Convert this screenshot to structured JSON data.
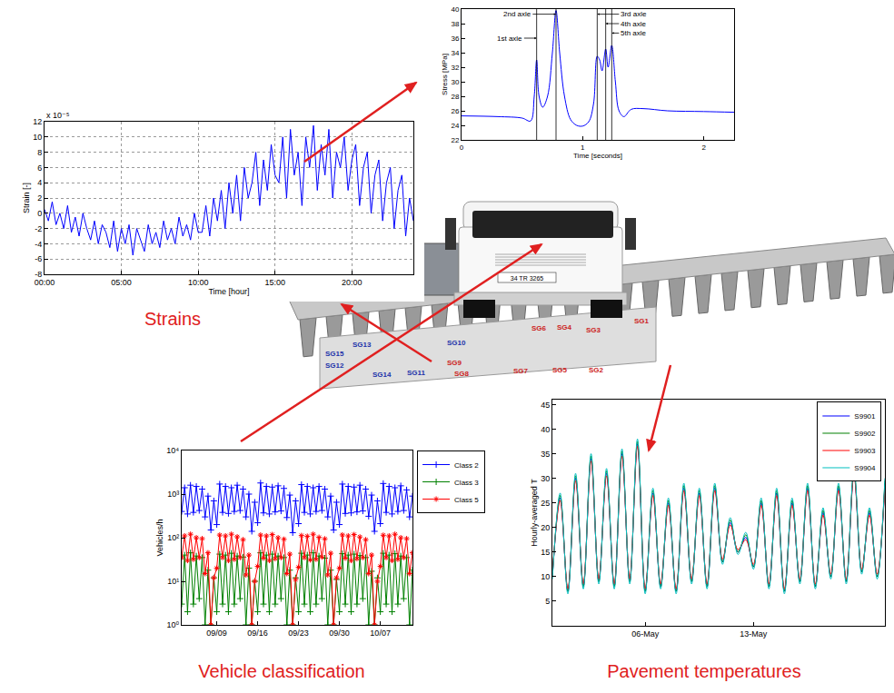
{
  "chart_data": [
    {
      "type": "line",
      "x_label": "Time [hour]",
      "y_label": "Strain [-]",
      "y_multiplier": "x 10⁻⁵",
      "xlim": [
        0,
        24
      ],
      "xticks": [
        {
          "value": 0,
          "label": "00:00"
        },
        {
          "value": 5,
          "label": "05:00"
        },
        {
          "value": 10,
          "label": "10:00"
        },
        {
          "value": 15,
          "label": "15:00"
        },
        {
          "value": 20,
          "label": "20:00"
        }
      ],
      "ylim": [
        -8,
        12
      ],
      "yticks": [
        -8,
        -6,
        -4,
        -2,
        0,
        2,
        4,
        6,
        8,
        10,
        12
      ],
      "grid": true,
      "color": "#0000ff",
      "x": [
        0,
        0.25,
        0.5,
        0.75,
        1,
        1.25,
        1.5,
        1.75,
        2,
        2.25,
        2.5,
        2.75,
        3,
        3.25,
        3.5,
        3.75,
        4,
        4.25,
        4.5,
        4.75,
        5,
        5.25,
        5.5,
        5.75,
        6,
        6.25,
        6.5,
        6.75,
        7,
        7.25,
        7.5,
        7.75,
        8,
        8.25,
        8.5,
        8.75,
        9,
        9.25,
        9.5,
        9.75,
        10,
        10.25,
        10.5,
        10.75,
        11,
        11.25,
        11.5,
        11.75,
        12,
        12.25,
        12.5,
        12.75,
        13,
        13.25,
        13.5,
        13.75,
        14,
        14.25,
        14.5,
        14.75,
        15,
        15.25,
        15.5,
        15.75,
        16,
        16.25,
        16.5,
        16.75,
        17,
        17.25,
        17.5,
        17.75,
        18,
        18.25,
        18.5,
        18.75,
        19,
        19.25,
        19.5,
        19.75,
        20,
        20.25,
        20.5,
        20.75,
        21,
        21.25,
        21.5,
        21.75,
        22,
        22.25,
        22.5,
        22.75,
        23,
        23.25,
        23.5,
        23.75,
        24
      ],
      "values": [
        0.5,
        -1,
        1.5,
        -1.5,
        0,
        -2,
        1,
        -2.5,
        -0.5,
        -3,
        0,
        -2,
        -3.5,
        -1,
        -4,
        -1.5,
        -2.5,
        -4.5,
        -1,
        -5,
        -2,
        -4,
        -1.5,
        -5.5,
        -2,
        -3.5,
        -5,
        -1.5,
        -4,
        -2.5,
        -4.5,
        -1,
        -3.5,
        -2,
        -4,
        -0.5,
        -3,
        -1.5,
        -3.5,
        0,
        -2.5,
        -2.5,
        1,
        -3,
        2,
        -1,
        3,
        -2,
        4,
        0,
        5,
        -1,
        6,
        2,
        4,
        8,
        1,
        7,
        3,
        9,
        5,
        4,
        10,
        2,
        11,
        5,
        8,
        1,
        10,
        6,
        11.5,
        3,
        9,
        5,
        11,
        2,
        8,
        6,
        10,
        3,
        7,
        9,
        1,
        6,
        8,
        0,
        5,
        7,
        -1,
        4,
        6,
        -2,
        3,
        5,
        -3,
        2,
        -1
      ]
    },
    {
      "type": "line",
      "x_label": "Time [seconds]",
      "y_label": "Stress [MPa]",
      "xlim": [
        0,
        2.25
      ],
      "xticks": [
        0,
        1,
        2
      ],
      "ylim": [
        22,
        40
      ],
      "yticks": [
        22,
        24,
        26,
        28,
        30,
        32,
        34,
        36,
        38,
        40
      ],
      "grid": false,
      "color": "#0000ff",
      "x": [
        0,
        0.3,
        0.5,
        0.57,
        0.6,
        0.62,
        0.64,
        0.67,
        0.71,
        0.75,
        0.78,
        0.81,
        0.85,
        0.9,
        0.95,
        1.0,
        1.05,
        1.09,
        1.12,
        1.14,
        1.16,
        1.19,
        1.21,
        1.24,
        1.27,
        1.3,
        1.34,
        1.4,
        1.5,
        1.7,
        2.0,
        2.25
      ],
      "values": [
        25.3,
        25.2,
        25.0,
        24.6,
        28,
        33,
        28,
        26.5,
        28,
        34,
        39.8,
        34,
        28,
        24.8,
        24.0,
        23.9,
        24.5,
        27,
        33.5,
        33,
        31.5,
        34.5,
        32,
        35,
        30,
        26,
        25.2,
        26.2,
        26.3,
        26.0,
        25.9,
        25.8
      ],
      "annotations": [
        {
          "text": "1st axle",
          "x": 0.62
        },
        {
          "text": "2nd axle",
          "x": 0.78
        },
        {
          "text": "3rd axle",
          "x": 1.12
        },
        {
          "text": "4th axle",
          "x": 1.19
        },
        {
          "text": "5th axle",
          "x": 1.24
        }
      ]
    },
    {
      "type": "line",
      "y_label": "Vehicles/h",
      "categories": [
        null,
        null,
        null,
        null,
        null,
        null,
        null,
        null,
        null,
        null,
        null,
        null,
        "09/09",
        null,
        null,
        null,
        null,
        null,
        null,
        null,
        null,
        null,
        null,
        null,
        null,
        null,
        "09/16",
        null,
        null,
        null,
        null,
        null,
        null,
        null,
        null,
        null,
        null,
        null,
        null,
        null,
        "09/23",
        null,
        null,
        null,
        null,
        null,
        null,
        null,
        null,
        null,
        null,
        null,
        null,
        null,
        "09/30",
        null,
        null,
        null,
        null,
        null,
        null,
        null,
        null,
        null,
        null,
        null,
        null,
        null,
        "10/07",
        null,
        null,
        null,
        null,
        null,
        null,
        null,
        null,
        null,
        null,
        null
      ],
      "log": "y",
      "ylim": [
        1,
        10000
      ],
      "yticks": [
        {
          "value": 1,
          "label": "10⁰"
        },
        {
          "value": 10,
          "label": "10¹"
        },
        {
          "value": 100,
          "label": "10²"
        },
        {
          "value": 1000,
          "label": "10³"
        },
        {
          "value": 10000,
          "label": "10⁴"
        }
      ],
      "grid": false,
      "legend": "right",
      "series": [
        {
          "name": "Class 2",
          "color": "#0000ff",
          "marker": "plus",
          "values": [
            400,
            1400,
            350,
            1600,
            380,
            1500,
            420,
            1300,
            300,
            900,
            150,
            700,
            200,
            1700,
            380,
            1500,
            360,
            1400,
            400,
            1600,
            420,
            1300,
            300,
            1000,
            140,
            650,
            220,
            1800,
            370,
            1500,
            350,
            1450,
            390,
            1550,
            410,
            1350,
            290,
            950,
            130,
            700,
            210,
            1650,
            380,
            1500,
            350,
            1400,
            400,
            1500,
            420,
            1300,
            300,
            900,
            150,
            650,
            200,
            1700,
            360,
            1500,
            370,
            1450,
            390,
            1600,
            410,
            1300,
            310,
            950,
            140,
            700,
            210,
            1750,
            380,
            1500,
            350,
            1400,
            400,
            1550,
            420,
            1250,
            300,
            900
          ]
        },
        {
          "name": "Class 3",
          "color": "#008000",
          "marker": "plus",
          "values": [
            3,
            40,
            2,
            45,
            3,
            38,
            4,
            35,
            1,
            18,
            1,
            12,
            2,
            42,
            3,
            40,
            2,
            44,
            3,
            38,
            4,
            36,
            1,
            20,
            1,
            10,
            2,
            45,
            3,
            40,
            2,
            42,
            3,
            38,
            4,
            35,
            1,
            18,
            1,
            12,
            2,
            44,
            3,
            40,
            2,
            45,
            3,
            38,
            4,
            34,
            1,
            18,
            1,
            11,
            2,
            43,
            3,
            40,
            2,
            42,
            3,
            39,
            4,
            35,
            1,
            17,
            1,
            12,
            2,
            44,
            3,
            40,
            2,
            43,
            3,
            38,
            4,
            35,
            1,
            18
          ]
        },
        {
          "name": "Class 5",
          "color": "#ff0000",
          "marker": "star",
          "values": [
            35,
            110,
            30,
            120,
            32,
            100,
            35,
            95,
            15,
            45,
            1,
            12,
            20,
            115,
            35,
            110,
            30,
            120,
            32,
            105,
            35,
            90,
            14,
            40,
            1,
            10,
            22,
            115,
            34,
            110,
            30,
            118,
            33,
            100,
            35,
            92,
            15,
            42,
            1,
            11,
            21,
            112,
            35,
            108,
            31,
            120,
            32,
            102,
            36,
            94,
            14,
            44,
            1,
            12,
            20,
            116,
            34,
            110,
            30,
            118,
            33,
            104,
            35,
            90,
            15,
            40,
            1,
            10,
            22,
            114,
            35,
            110,
            30,
            120,
            32,
            100,
            35,
            95,
            15,
            45
          ]
        }
      ]
    },
    {
      "type": "line",
      "y_label": "Hourly-averaged T",
      "categories": [
        null,
        null,
        null,
        null,
        null,
        null,
        null,
        null,
        null,
        null,
        null,
        null,
        "06-May",
        null,
        null,
        null,
        null,
        null,
        null,
        null,
        null,
        null,
        null,
        null,
        null,
        null,
        "13-May",
        null,
        null,
        null,
        null,
        null,
        null,
        null,
        null,
        null,
        null,
        null,
        null,
        null,
        null,
        null,
        null,
        null
      ],
      "ylim": [
        0,
        46
      ],
      "yticks": [
        5,
        10,
        15,
        20,
        25,
        30,
        35,
        40,
        45
      ],
      "grid": false,
      "legend": "upper right",
      "series": [
        {
          "name": "S9901",
          "color": "#0000ff",
          "values": [
            10,
            26,
            7,
            30,
            8,
            34,
            9,
            31,
            8,
            35,
            9,
            37,
            7,
            27,
            8,
            25,
            7,
            28,
            9,
            27,
            8,
            28,
            13,
            21,
            15,
            18,
            12,
            25,
            8,
            27,
            7,
            25,
            9,
            28,
            8,
            23,
            10,
            28,
            9,
            31,
            11,
            23,
            10,
            29
          ]
        },
        {
          "name": "S9902",
          "color": "#008000",
          "values": [
            10,
            26.5,
            7,
            30.5,
            8,
            34.5,
            9,
            31.5,
            8,
            35.5,
            9,
            37.5,
            7,
            27.5,
            8,
            25.5,
            7,
            28.5,
            9,
            27.5,
            8,
            28.5,
            13,
            21.5,
            15,
            18.5,
            12,
            25.5,
            8,
            27.5,
            7,
            25.5,
            9,
            28.5,
            8,
            23.5,
            10,
            28.5,
            9,
            31.5,
            11,
            23.5,
            10,
            29.5
          ]
        },
        {
          "name": "S9903",
          "color": "#ff0000",
          "values": [
            10.5,
            25.5,
            7.5,
            29.5,
            8.5,
            33.5,
            9.5,
            30.5,
            8.5,
            34.5,
            9.5,
            36.5,
            7.5,
            26.5,
            8.5,
            24.5,
            7.5,
            27.5,
            9.5,
            26.5,
            8.5,
            27.5,
            13.5,
            20.5,
            15.5,
            17.5,
            12.5,
            24.5,
            8.5,
            26.5,
            7.5,
            24.5,
            9.5,
            27.5,
            8.5,
            22.5,
            10.5,
            27.5,
            9.5,
            30.5,
            11.5,
            22.5,
            10.5,
            28.5
          ]
        },
        {
          "name": "S9904",
          "color": "#00bfbf",
          "values": [
            9.5,
            27,
            6.5,
            31,
            7.5,
            35,
            8.5,
            32,
            7.5,
            36,
            8.5,
            38,
            6.5,
            28,
            7.5,
            26,
            6.5,
            29,
            8.5,
            28,
            7.5,
            29,
            12.5,
            22,
            14.5,
            19,
            11.5,
            26,
            7.5,
            28,
            6.5,
            26,
            8.5,
            29,
            7.5,
            24,
            9.5,
            29,
            8.5,
            32,
            10.5,
            24,
            9.5,
            30
          ]
        }
      ]
    }
  ],
  "captions": [
    {
      "text": "Strains",
      "color": "#e02020"
    },
    {
      "text": "Vehicle classification",
      "color": "#e02020"
    },
    {
      "text": "Pavement temperatures",
      "color": "#e02020"
    }
  ],
  "bridge": {
    "truck_plate": "34 TR 3265",
    "gauges": [
      {
        "label": "SG15",
        "color": "#2233aa"
      },
      {
        "label": "SG13",
        "color": "#2233aa"
      },
      {
        "label": "SG12",
        "color": "#2233aa"
      },
      {
        "label": "SG14",
        "color": "#2233aa"
      },
      {
        "label": "SG11",
        "color": "#2233aa"
      },
      {
        "label": "SG10",
        "color": "#2233aa"
      },
      {
        "label": "SG9",
        "color": "#cc2222"
      },
      {
        "label": "SG8",
        "color": "#cc2222"
      },
      {
        "label": "SG7",
        "color": "#cc2222"
      },
      {
        "label": "SG6",
        "color": "#cc2222"
      },
      {
        "label": "SG5",
        "color": "#cc2222"
      },
      {
        "label": "SG4",
        "color": "#cc2222"
      },
      {
        "label": "SG3",
        "color": "#cc2222"
      },
      {
        "label": "SG2",
        "color": "#cc2222"
      },
      {
        "label": "SG1",
        "color": "#cc2222"
      }
    ]
  }
}
